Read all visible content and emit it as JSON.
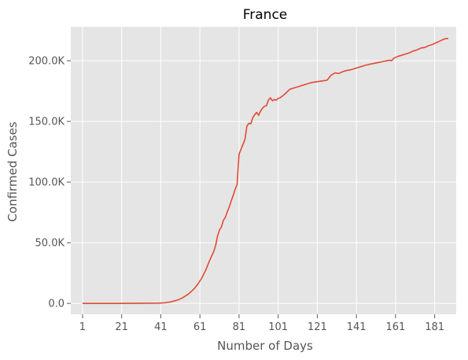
{
  "chart_data": {
    "type": "line",
    "title": "France",
    "xlabel": "Number of Days",
    "ylabel": "Confirmed Cases",
    "xlim": [
      -5,
      192
    ],
    "ylim": [
      -9000,
      228000
    ],
    "x_ticks": [
      1,
      21,
      41,
      61,
      81,
      101,
      121,
      141,
      161,
      181
    ],
    "x_tick_labels": [
      "1",
      "21",
      "41",
      "61",
      "81",
      "101",
      "121",
      "141",
      "161",
      "181"
    ],
    "y_ticks": [
      0,
      50000,
      100000,
      150000,
      200000
    ],
    "y_tick_labels": [
      "0.0",
      "50.0K",
      "100.0K",
      "150.0K",
      "200.0K"
    ],
    "grid": true,
    "colors": {
      "background": "#e5e5e5",
      "grid": "#ffffff",
      "line": "#e24a33"
    },
    "series": [
      {
        "x": [
          1,
          20,
          40,
          43,
          46,
          49,
          50,
          52,
          53,
          55,
          56,
          58,
          60,
          62,
          64,
          66,
          68,
          69,
          70,
          71,
          72,
          73,
          74,
          75,
          76,
          77,
          78,
          79,
          80,
          81,
          82,
          83,
          84,
          85,
          86,
          87,
          88,
          89,
          90,
          91,
          92,
          93,
          94,
          95,
          96,
          97,
          98,
          99,
          100,
          101,
          102,
          104,
          106,
          107,
          108,
          110,
          112,
          114,
          116,
          118,
          120,
          122,
          124,
          126,
          128,
          130,
          132,
          134,
          136,
          138,
          140,
          143,
          146,
          149,
          152,
          155,
          158,
          159,
          160,
          162,
          164,
          166,
          168,
          170,
          172,
          174,
          176,
          178,
          180,
          182,
          184,
          186,
          188
        ],
        "y": [
          0,
          0,
          200,
          500,
          1200,
          2500,
          3000,
          4500,
          5500,
          7500,
          9000,
          12000,
          16000,
          21000,
          27500,
          35500,
          42500,
          47500,
          55500,
          60500,
          63000,
          68500,
          71000,
          75500,
          79500,
          84500,
          89000,
          94000,
          98000,
          123000,
          127000,
          131000,
          135000,
          146000,
          148500,
          148000,
          153000,
          155500,
          157500,
          155000,
          158500,
          161000,
          162500,
          163000,
          167500,
          169500,
          167000,
          168000,
          167500,
          169000,
          169500,
          172000,
          175000,
          176500,
          177000,
          178000,
          179000,
          180000,
          181000,
          182000,
          182500,
          183000,
          183500,
          184000,
          188000,
          190000,
          189500,
          191000,
          192000,
          192500,
          193500,
          195000,
          196500,
          197500,
          198500,
          199500,
          200500,
          200000,
          202000,
          203500,
          204500,
          205500,
          206500,
          208000,
          209000,
          210500,
          211000,
          212500,
          213500,
          215000,
          216500,
          218000,
          218500
        ]
      }
    ]
  }
}
